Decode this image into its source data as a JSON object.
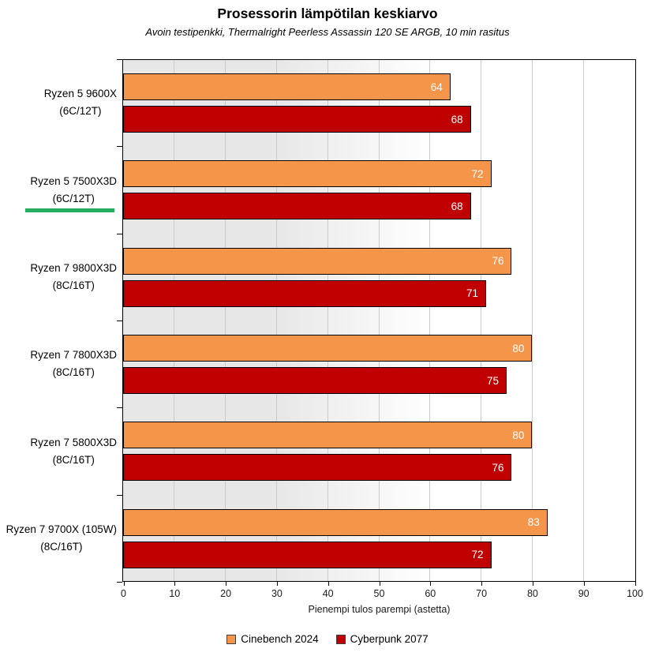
{
  "chart_data": {
    "type": "bar",
    "orientation": "horizontal",
    "title": "Prosessorin lämpötilan keskiarvo",
    "subtitle": "Avoin testipenkki, Thermalright Peerless Assassin 120 SE ARGB, 10 min rasitus",
    "xlabel": "Pienempi tulos parempi (astetta)",
    "xlim": [
      0,
      100
    ],
    "xticks": [
      0,
      10,
      20,
      30,
      40,
      50,
      60,
      70,
      80,
      90,
      100
    ],
    "grid": true,
    "legend_position": "bottom",
    "categories": [
      {
        "line1": "Ryzen 5 9600X",
        "line2": "(6C/12T)",
        "highlighted": false
      },
      {
        "line1": "Ryzen 5 7500X3D",
        "line2": "(6C/12T)",
        "highlighted": true
      },
      {
        "line1": "Ryzen 7 9800X3D",
        "line2": "(8C/16T)",
        "highlighted": false
      },
      {
        "line1": "Ryzen 7 7800X3D",
        "line2": "(8C/16T)",
        "highlighted": false
      },
      {
        "line1": "Ryzen 7 5800X3D",
        "line2": "(8C/16T)",
        "highlighted": false
      },
      {
        "line1": "Ryzen 7 9700X (105W)",
        "line2": "(8C/16T)",
        "highlighted": false
      }
    ],
    "series": [
      {
        "name": "Cinebench 2024",
        "color": "#F5954A",
        "border_color": "#000000",
        "values": [
          64,
          72,
          76,
          80,
          80,
          83
        ]
      },
      {
        "name": "Cyberpunk 2077",
        "color": "#C00000",
        "border_color": "#000000",
        "values": [
          68,
          68,
          71,
          75,
          76,
          72
        ]
      }
    ],
    "value_label_color": "#FFFFFF",
    "highlight_color": "#27AE60"
  },
  "style_colors": {
    "plot_background_left": "#E7E7E7",
    "plot_background_right": "#FFFFFF",
    "gridline": "#CBCBCB",
    "axis": "#000000"
  }
}
